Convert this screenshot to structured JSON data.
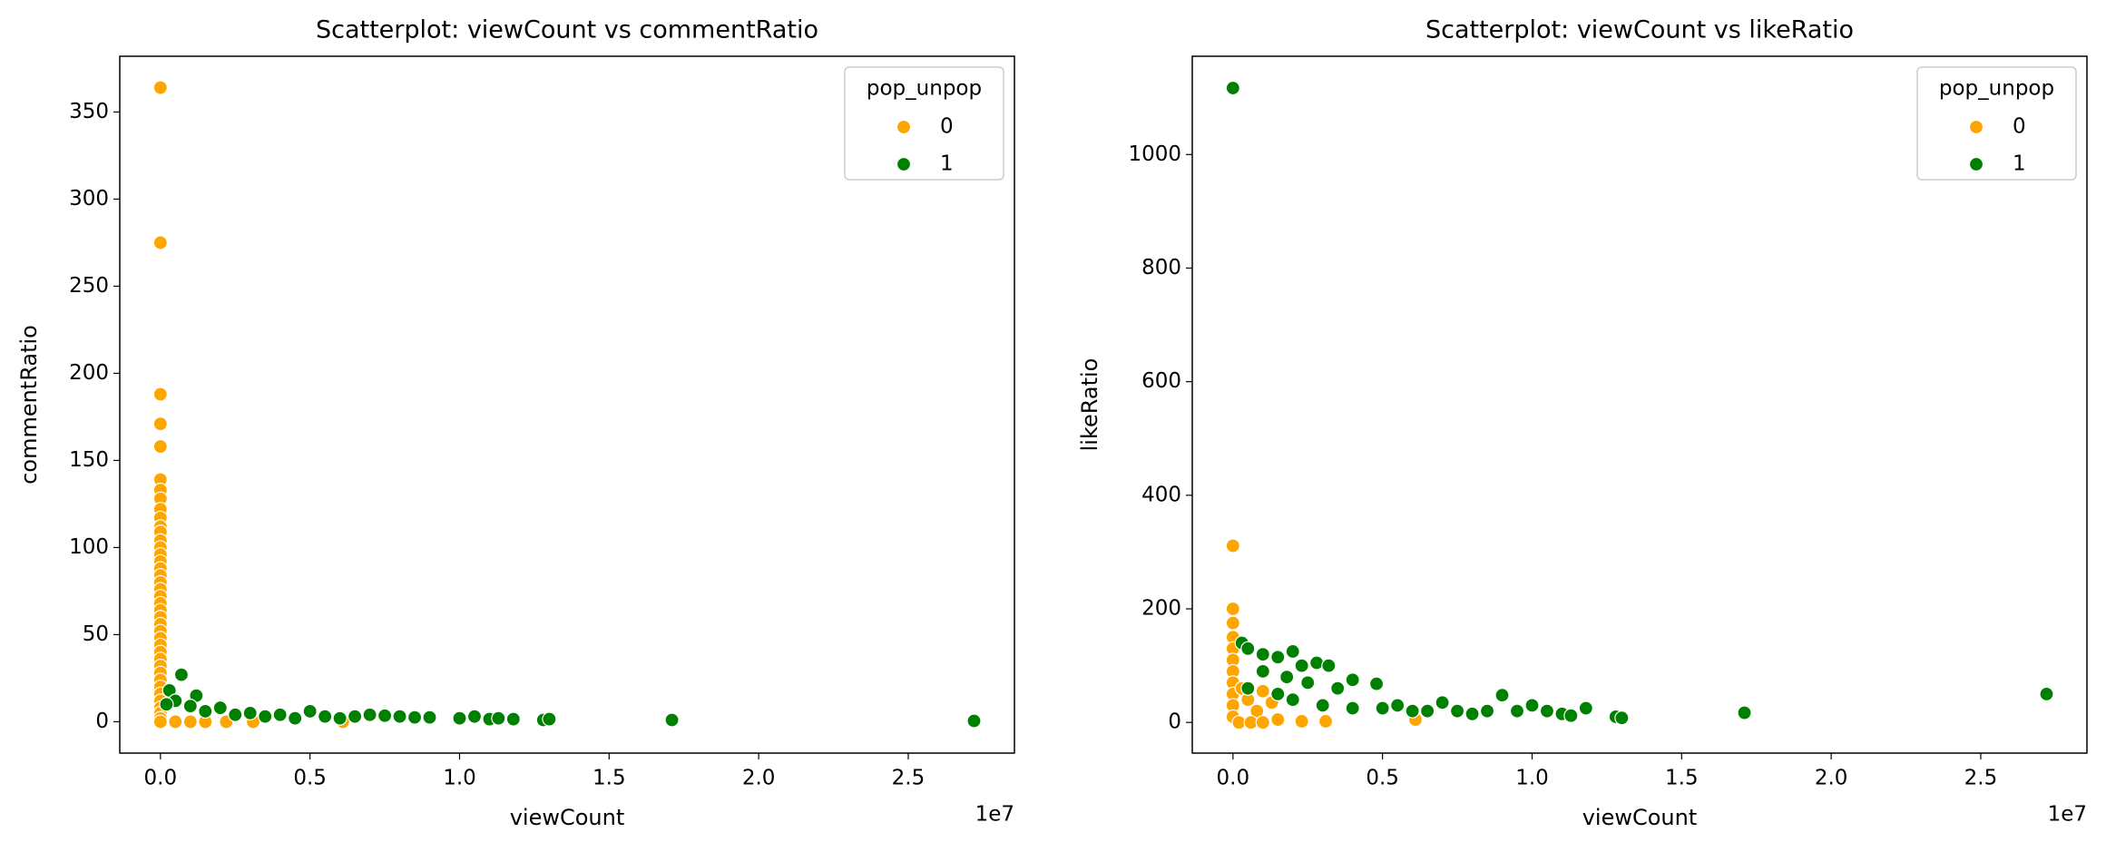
{
  "chart_data": [
    {
      "type": "scatter",
      "title": "Scatterplot: viewCount vs commentRatio",
      "x_label": "viewCount",
      "y_label": "commentRatio",
      "x_offset_label": "1e7",
      "xlim": [
        -1360000,
        28550000
      ],
      "ylim": [
        -18,
        382
      ],
      "xticks": [
        {
          "value": 0,
          "label": "0.0"
        },
        {
          "value": 5000000,
          "label": "0.5"
        },
        {
          "value": 10000000,
          "label": "1.0"
        },
        {
          "value": 15000000,
          "label": "1.5"
        },
        {
          "value": 20000000,
          "label": "2.0"
        },
        {
          "value": 25000000,
          "label": "2.5"
        }
      ],
      "yticks": [
        0,
        50,
        100,
        150,
        200,
        250,
        300,
        350
      ],
      "legend": {
        "title": "pop_unpop",
        "position": "upper right"
      },
      "series": [
        {
          "name": "0",
          "color": "#ffa500",
          "x": [
            0,
            0,
            0,
            0,
            0,
            0,
            0,
            0,
            0,
            0,
            0,
            0,
            0,
            0,
            0,
            0,
            0,
            0,
            0,
            0,
            0,
            0,
            0,
            0,
            0,
            0,
            0,
            0,
            0,
            0,
            0,
            0,
            0,
            0,
            0,
            0,
            0,
            0,
            0,
            0,
            500000,
            1000000,
            1500000,
            2200000,
            3100000,
            6100000
          ],
          "values": [
            364,
            275,
            188,
            171,
            158,
            139,
            133,
            128,
            122,
            117,
            112,
            109,
            104,
            100,
            96,
            92,
            88,
            84,
            80,
            76,
            72,
            68,
            64,
            60,
            56,
            52,
            48,
            44,
            40,
            36,
            32,
            28,
            24,
            20,
            16,
            12,
            8,
            5,
            2,
            0,
            0,
            0,
            0,
            0,
            0,
            0
          ]
        },
        {
          "name": "1",
          "color": "#008000",
          "x": [
            700000,
            300000,
            1200000,
            500000,
            2000000,
            1500000,
            3000000,
            4000000,
            5000000,
            5500000,
            6500000,
            7000000,
            7500000,
            8000000,
            8500000,
            9000000,
            10000000,
            10500000,
            11000000,
            11300000,
            11800000,
            12800000,
            13000000,
            17100000,
            27200000,
            200000,
            1000000,
            2500000,
            3500000,
            4500000,
            6000000
          ],
          "values": [
            27,
            18,
            15,
            12,
            8,
            6,
            5,
            4,
            6,
            3,
            3,
            4,
            3.5,
            3,
            2.5,
            2.5,
            2,
            3,
            1.5,
            2,
            1.5,
            1,
            1.5,
            1,
            0.5,
            10,
            9,
            4,
            3,
            2,
            2
          ]
        }
      ]
    },
    {
      "type": "scatter",
      "title": "Scatterplot: viewCount vs likeRatio",
      "x_label": "viewCount",
      "y_label": "likeRatio",
      "x_offset_label": "1e7",
      "xlim": [
        -1360000,
        28550000
      ],
      "ylim": [
        -54,
        1173
      ],
      "xticks": [
        {
          "value": 0,
          "label": "0.0"
        },
        {
          "value": 5000000,
          "label": "0.5"
        },
        {
          "value": 10000000,
          "label": "1.0"
        },
        {
          "value": 15000000,
          "label": "1.5"
        },
        {
          "value": 20000000,
          "label": "2.0"
        },
        {
          "value": 25000000,
          "label": "2.5"
        }
      ],
      "yticks": [
        0,
        200,
        400,
        600,
        800,
        1000
      ],
      "legend": {
        "title": "pop_unpop",
        "position": "upper right"
      },
      "series": [
        {
          "name": "0",
          "color": "#ffa500",
          "x": [
            0,
            0,
            0,
            0,
            0,
            0,
            0,
            0,
            0,
            0,
            0,
            300000,
            500000,
            1000000,
            1300000,
            800000,
            1500000,
            2300000,
            3100000,
            6100000,
            200000,
            600000,
            1000000
          ],
          "values": [
            311,
            200,
            175,
            150,
            130,
            110,
            90,
            70,
            50,
            30,
            10,
            60,
            40,
            55,
            35,
            20,
            5,
            2,
            2,
            5,
            0,
            0,
            0
          ]
        },
        {
          "name": "1",
          "color": "#008000",
          "x": [
            0,
            300000,
            500000,
            1000000,
            1500000,
            2000000,
            2300000,
            2800000,
            3200000,
            1000000,
            1800000,
            2500000,
            3500000,
            4000000,
            4800000,
            2000000,
            3000000,
            4000000,
            5000000,
            5500000,
            6000000,
            6500000,
            7000000,
            7500000,
            8000000,
            8500000,
            9000000,
            9500000,
            10000000,
            10500000,
            11000000,
            11300000,
            11800000,
            12800000,
            13000000,
            17100000,
            27200000,
            500000,
            1500000
          ],
          "values": [
            1117,
            140,
            130,
            120,
            115,
            125,
            100,
            105,
            100,
            90,
            80,
            70,
            60,
            75,
            68,
            40,
            30,
            25,
            25,
            30,
            20,
            20,
            35,
            20,
            15,
            20,
            48,
            20,
            30,
            20,
            15,
            12,
            25,
            10,
            8,
            17,
            50,
            60,
            50
          ]
        }
      ]
    }
  ]
}
